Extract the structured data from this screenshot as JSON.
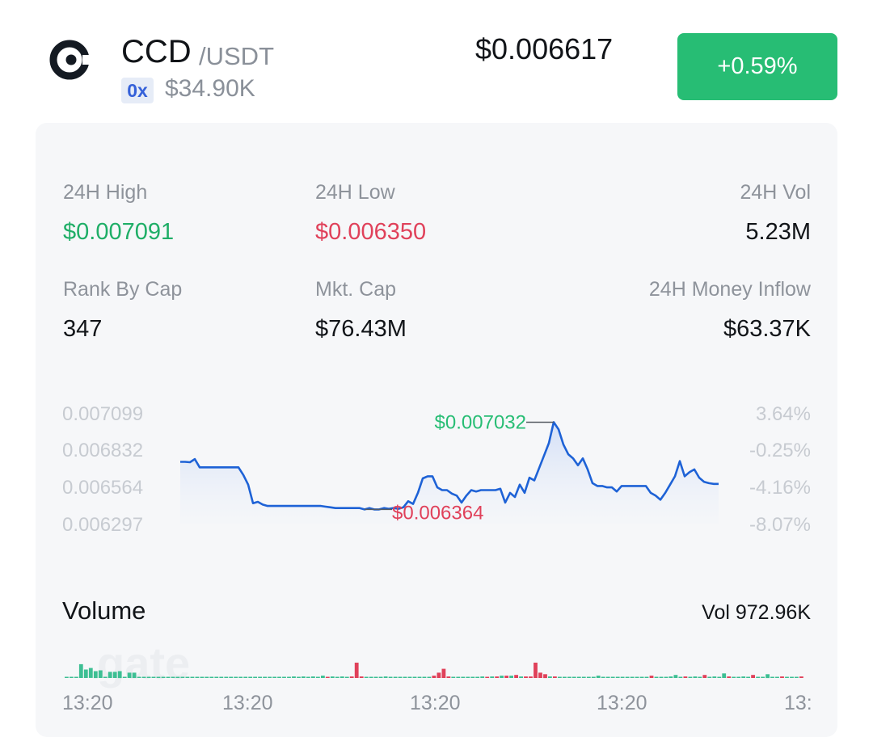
{
  "header": {
    "logo_icon": "ccd-coin-icon",
    "symbol": "CCD",
    "quote": "/USDT",
    "chain_badge": "0x",
    "liquidity": "$34.90K",
    "price": "$0.006617",
    "change": "+0.59%",
    "colors": {
      "up": "#27bd74",
      "down": "#e0415a",
      "accent_line": "#1e62d6"
    }
  },
  "stats": [
    {
      "label": "24H High",
      "value": "$0.007091",
      "tone": "up"
    },
    {
      "label": "24H Low",
      "value": "$0.006350",
      "tone": "down"
    },
    {
      "label": "24H Vol",
      "value": "5.23M",
      "tone": "neutral"
    },
    {
      "label": "Rank By Cap",
      "value": "347",
      "tone": "neutral"
    },
    {
      "label": "Mkt. Cap",
      "value": "$76.43M",
      "tone": "neutral"
    },
    {
      "label": "24H Money Inflow",
      "value": "$63.37K",
      "tone": "neutral"
    }
  ],
  "chart_data": {
    "type": "area",
    "y_ticks_left": [
      "0.007099",
      "0.006832",
      "0.006564",
      "0.006297"
    ],
    "y_ticks_right": [
      "3.64%",
      "-0.25%",
      "-4.16%",
      "-8.07%"
    ],
    "ylim": [
      0.006297,
      0.007099
    ],
    "values": [
      0.006745,
      0.006745,
      0.006742,
      0.006765,
      0.006705,
      0.006705,
      0.006705,
      0.006705,
      0.006705,
      0.006705,
      0.006705,
      0.006705,
      0.006705,
      0.00665,
      0.00658,
      0.006445,
      0.006455,
      0.006435,
      0.006425,
      0.006425,
      0.006425,
      0.006425,
      0.006425,
      0.006425,
      0.006425,
      0.006425,
      0.006425,
      0.006425,
      0.006425,
      0.006425,
      0.00642,
      0.006415,
      0.00641,
      0.00641,
      0.00641,
      0.00641,
      0.00641,
      0.00641,
      0.0064,
      0.00641,
      0.0064,
      0.0064,
      0.00641,
      0.006405,
      0.00641,
      0.006405,
      0.006415,
      0.00646,
      0.00644,
      0.00652,
      0.006625,
      0.00664,
      0.00664,
      0.00656,
      0.00654,
      0.00654,
      0.006515,
      0.0065,
      0.00645,
      0.0065,
      0.00654,
      0.00653,
      0.00654,
      0.00654,
      0.00654,
      0.00654,
      0.00655,
      0.00645,
      0.00652,
      0.00649,
      0.00658,
      0.00652,
      0.00663,
      0.00661,
      0.0067,
      0.00679,
      0.00688,
      0.007032,
      0.00698,
      0.00687,
      0.0068,
      0.00677,
      0.00672,
      0.00677,
      0.00669,
      0.00659,
      0.00657,
      0.00657,
      0.00656,
      0.00656,
      0.00653,
      0.00657,
      0.00657,
      0.00657,
      0.00657,
      0.00657,
      0.00657,
      0.00652,
      0.0065,
      0.00647,
      0.00652,
      0.00658,
      0.00664,
      0.00675,
      0.00664,
      0.00667,
      0.00669,
      0.00663,
      0.0066,
      0.00659,
      0.006585,
      0.006585
    ],
    "max_label": "$0.007032",
    "min_label": "$0.006364"
  },
  "volume": {
    "title": "Volume",
    "total": "Vol 972.96K",
    "watermark": "gate",
    "bars": [
      {
        "v": 0.05,
        "dir": "up"
      },
      {
        "v": 0.05,
        "dir": "up"
      },
      {
        "v": 0.05,
        "dir": "up"
      },
      {
        "v": 0.9,
        "dir": "up"
      },
      {
        "v": 0.55,
        "dir": "up"
      },
      {
        "v": 0.65,
        "dir": "up"
      },
      {
        "v": 0.45,
        "dir": "up"
      },
      {
        "v": 0.5,
        "dir": "up"
      },
      {
        "v": 0.05,
        "dir": "up"
      },
      {
        "v": 0.4,
        "dir": "up"
      },
      {
        "v": 0.4,
        "dir": "up"
      },
      {
        "v": 0.45,
        "dir": "up"
      },
      {
        "v": 0.05,
        "dir": "up"
      },
      {
        "v": 0.35,
        "dir": "up"
      },
      {
        "v": 0.35,
        "dir": "up"
      },
      {
        "v": 0.05,
        "dir": "up"
      },
      {
        "v": 0.05,
        "dir": "up"
      },
      {
        "v": 0.05,
        "dir": "up"
      },
      {
        "v": 0.05,
        "dir": "up"
      },
      {
        "v": 0.05,
        "dir": "up"
      },
      {
        "v": 0.05,
        "dir": "up"
      },
      {
        "v": 0.05,
        "dir": "up"
      },
      {
        "v": 0.05,
        "dir": "up"
      },
      {
        "v": 0.05,
        "dir": "up"
      },
      {
        "v": 0.05,
        "dir": "up"
      },
      {
        "v": 0.05,
        "dir": "up"
      },
      {
        "v": 0.05,
        "dir": "up"
      },
      {
        "v": 0.05,
        "dir": "up"
      },
      {
        "v": 0.05,
        "dir": "up"
      },
      {
        "v": 0.05,
        "dir": "up"
      },
      {
        "v": 0.05,
        "dir": "up"
      },
      {
        "v": 0.05,
        "dir": "up"
      },
      {
        "v": 0.05,
        "dir": "up"
      },
      {
        "v": 0.05,
        "dir": "up"
      },
      {
        "v": 0.05,
        "dir": "up"
      },
      {
        "v": 0.05,
        "dir": "up"
      },
      {
        "v": 0.05,
        "dir": "up"
      },
      {
        "v": 0.05,
        "dir": "up"
      },
      {
        "v": 0.05,
        "dir": "up"
      },
      {
        "v": 0.05,
        "dir": "up"
      },
      {
        "v": 0.05,
        "dir": "up"
      },
      {
        "v": 0.05,
        "dir": "up"
      },
      {
        "v": 0.05,
        "dir": "up"
      },
      {
        "v": 0.05,
        "dir": "up"
      },
      {
        "v": 0.05,
        "dir": "up"
      },
      {
        "v": 0.05,
        "dir": "up"
      },
      {
        "v": 0.05,
        "dir": "up"
      },
      {
        "v": 0.1,
        "dir": "up"
      },
      {
        "v": 0.05,
        "dir": "up"
      },
      {
        "v": 0.1,
        "dir": "up"
      },
      {
        "v": 0.05,
        "dir": "up"
      },
      {
        "v": 0.1,
        "dir": "up"
      },
      {
        "v": 0.05,
        "dir": "up"
      },
      {
        "v": 0.15,
        "dir": "up"
      },
      {
        "v": 0.05,
        "dir": "down"
      },
      {
        "v": 0.1,
        "dir": "up"
      },
      {
        "v": 0.05,
        "dir": "up"
      },
      {
        "v": 0.1,
        "dir": "up"
      },
      {
        "v": 0.05,
        "dir": "up"
      },
      {
        "v": 0.1,
        "dir": "down"
      },
      {
        "v": 1.0,
        "dir": "down"
      },
      {
        "v": 0.1,
        "dir": "down"
      },
      {
        "v": 0.05,
        "dir": "up"
      },
      {
        "v": 0.05,
        "dir": "up"
      },
      {
        "v": 0.05,
        "dir": "up"
      },
      {
        "v": 0.05,
        "dir": "up"
      },
      {
        "v": 0.1,
        "dir": "up"
      },
      {
        "v": 0.05,
        "dir": "up"
      },
      {
        "v": 0.05,
        "dir": "up"
      },
      {
        "v": 0.05,
        "dir": "up"
      },
      {
        "v": 0.05,
        "dir": "up"
      },
      {
        "v": 0.05,
        "dir": "up"
      },
      {
        "v": 0.05,
        "dir": "up"
      },
      {
        "v": 0.05,
        "dir": "up"
      },
      {
        "v": 0.05,
        "dir": "up"
      },
      {
        "v": 0.05,
        "dir": "up"
      },
      {
        "v": 0.15,
        "dir": "down"
      },
      {
        "v": 0.35,
        "dir": "down"
      },
      {
        "v": 0.6,
        "dir": "down"
      },
      {
        "v": 0.1,
        "dir": "down"
      },
      {
        "v": 0.05,
        "dir": "up"
      },
      {
        "v": 0.05,
        "dir": "up"
      },
      {
        "v": 0.05,
        "dir": "up"
      },
      {
        "v": 0.05,
        "dir": "up"
      },
      {
        "v": 0.05,
        "dir": "up"
      },
      {
        "v": 0.05,
        "dir": "up"
      },
      {
        "v": 0.1,
        "dir": "up"
      },
      {
        "v": 0.05,
        "dir": "down"
      },
      {
        "v": 0.1,
        "dir": "up"
      },
      {
        "v": 0.1,
        "dir": "down"
      },
      {
        "v": 0.15,
        "dir": "up"
      },
      {
        "v": 0.15,
        "dir": "down"
      },
      {
        "v": 0.15,
        "dir": "up"
      },
      {
        "v": 0.2,
        "dir": "down"
      },
      {
        "v": 0.1,
        "dir": "up"
      },
      {
        "v": 0.1,
        "dir": "down"
      },
      {
        "v": 0.1,
        "dir": "down"
      },
      {
        "v": 1.0,
        "dir": "down"
      },
      {
        "v": 0.35,
        "dir": "down"
      },
      {
        "v": 0.25,
        "dir": "down"
      },
      {
        "v": 0.1,
        "dir": "up"
      },
      {
        "v": 0.1,
        "dir": "down"
      },
      {
        "v": 0.05,
        "dir": "up"
      },
      {
        "v": 0.05,
        "dir": "up"
      },
      {
        "v": 0.05,
        "dir": "up"
      },
      {
        "v": 0.05,
        "dir": "up"
      },
      {
        "v": 0.05,
        "dir": "up"
      },
      {
        "v": 0.05,
        "dir": "up"
      },
      {
        "v": 0.05,
        "dir": "up"
      },
      {
        "v": 0.05,
        "dir": "up"
      },
      {
        "v": 0.15,
        "dir": "up"
      },
      {
        "v": 0.05,
        "dir": "up"
      },
      {
        "v": 0.05,
        "dir": "up"
      },
      {
        "v": 0.05,
        "dir": "up"
      },
      {
        "v": 0.05,
        "dir": "up"
      },
      {
        "v": 0.05,
        "dir": "up"
      },
      {
        "v": 0.05,
        "dir": "up"
      },
      {
        "v": 0.05,
        "dir": "up"
      },
      {
        "v": 0.05,
        "dir": "up"
      },
      {
        "v": 0.05,
        "dir": "up"
      },
      {
        "v": 0.05,
        "dir": "up"
      },
      {
        "v": 0.15,
        "dir": "down"
      },
      {
        "v": 0.05,
        "dir": "up"
      },
      {
        "v": 0.05,
        "dir": "up"
      },
      {
        "v": 0.05,
        "dir": "up"
      },
      {
        "v": 0.1,
        "dir": "up"
      },
      {
        "v": 0.2,
        "dir": "up"
      },
      {
        "v": 0.05,
        "dir": "up"
      },
      {
        "v": 0.1,
        "dir": "down"
      },
      {
        "v": 0.05,
        "dir": "up"
      },
      {
        "v": 0.1,
        "dir": "up"
      },
      {
        "v": 0.05,
        "dir": "up"
      },
      {
        "v": 0.2,
        "dir": "down"
      },
      {
        "v": 0.05,
        "dir": "up"
      },
      {
        "v": 0.1,
        "dir": "up"
      },
      {
        "v": 0.05,
        "dir": "up"
      },
      {
        "v": 0.3,
        "dir": "up"
      },
      {
        "v": 0.1,
        "dir": "down"
      },
      {
        "v": 0.05,
        "dir": "up"
      },
      {
        "v": 0.05,
        "dir": "up"
      },
      {
        "v": 0.1,
        "dir": "up"
      },
      {
        "v": 0.05,
        "dir": "up"
      },
      {
        "v": 0.2,
        "dir": "down"
      },
      {
        "v": 0.05,
        "dir": "up"
      },
      {
        "v": 0.05,
        "dir": "up"
      },
      {
        "v": 0.25,
        "dir": "up"
      },
      {
        "v": 0.05,
        "dir": "up"
      },
      {
        "v": 0.05,
        "dir": "up"
      },
      {
        "v": 0.1,
        "dir": "down"
      },
      {
        "v": 0.05,
        "dir": "up"
      },
      {
        "v": 0.05,
        "dir": "up"
      },
      {
        "v": 0.05,
        "dir": "up"
      },
      {
        "v": 0.1,
        "dir": "down"
      }
    ],
    "time_labels": [
      "13:20",
      "13:20",
      "13:20",
      "13:20",
      "13:"
    ]
  }
}
